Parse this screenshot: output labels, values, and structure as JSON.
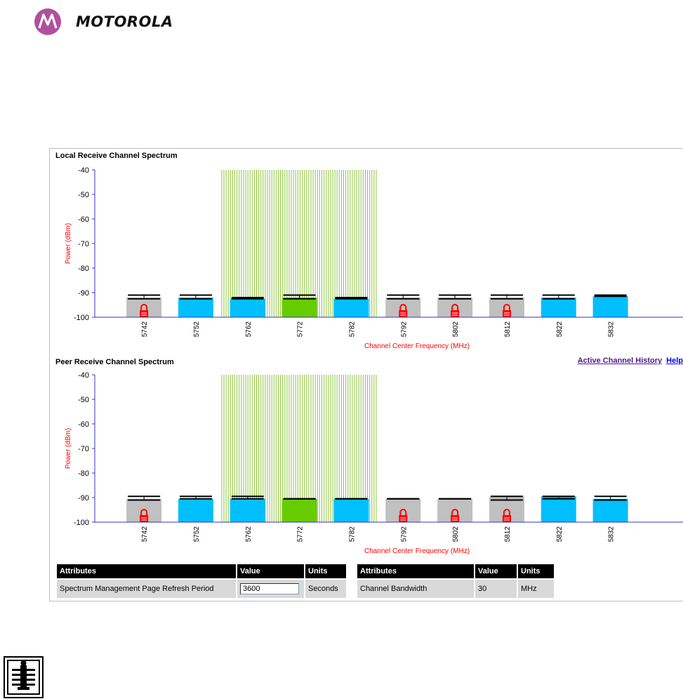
{
  "header": {
    "brand": "MOTOROLA"
  },
  "colors": {
    "available": "#00bfff",
    "active": "#66cc00",
    "barred": "#c0c0c0",
    "interference": "#8ec63f",
    "lock": "#ff0000",
    "axis_labels": "#ff0000"
  },
  "icons": [
    "motorola-logo-icon",
    "lock-icon",
    "info-icon"
  ],
  "local_chart": {
    "title": "Local Receive Channel Spectrum",
    "ylabel": "Power (dBm)",
    "xlabel": "Channel Center Frequency (MHz)",
    "yticks": [
      "-40",
      "-50",
      "-60",
      "-70",
      "-80",
      "-90",
      "-100"
    ]
  },
  "peer_chart": {
    "title": "Peer Receive Channel Spectrum",
    "ylabel": "Power (dBm)",
    "xlabel": "Channel Center Frequency (MHz)",
    "yticks": [
      "-40",
      "-50",
      "-60",
      "-70",
      "-80",
      "-90",
      "-100"
    ]
  },
  "links": {
    "history": "Active Channel History",
    "help": "Help"
  },
  "attributes_left": {
    "h_attr": "Attributes",
    "h_value": "Value",
    "h_units": "Units",
    "name": "Spectrum Management Page Refresh Period",
    "value": "3600",
    "units": "Seconds"
  },
  "attributes_right": {
    "h_attr": "Attributes",
    "h_value": "Value",
    "h_units": "Units",
    "name": "Channel Bandwidth",
    "value": "30",
    "units": "MHz"
  },
  "chart_data": [
    {
      "type": "bar",
      "title": "Local Receive Channel Spectrum",
      "xlabel": "Channel Center Frequency (MHz)",
      "ylabel": "Power (dBm)",
      "ylim": [
        -100,
        -40
      ],
      "interference_band": [
        5757,
        5787
      ],
      "categories": [
        "5742",
        "5752",
        "5762",
        "5772",
        "5782",
        "5792",
        "5802",
        "5812",
        "5822",
        "5832"
      ],
      "values": [
        -92,
        -92,
        -92.5,
        -92,
        -92.5,
        -92,
        -92,
        -92,
        -92,
        -91.5
      ],
      "peak": [
        -91,
        -91,
        -92,
        -91,
        -92,
        -91,
        -91,
        -91,
        -91,
        -91
      ],
      "mean": [
        -92.5,
        -92.5,
        -92.5,
        -92.5,
        -92.5,
        -92.5,
        -92.5,
        -92.5,
        -92.5,
        -91.5
      ],
      "status": [
        "barred",
        "available",
        "available",
        "active",
        "available",
        "barred",
        "barred",
        "barred",
        "available",
        "available"
      ]
    },
    {
      "type": "bar",
      "title": "Peer Receive Channel Spectrum",
      "xlabel": "Channel Center Frequency (MHz)",
      "ylabel": "Power (dBm)",
      "ylim": [
        -100,
        -40
      ],
      "interference_band": [
        5757,
        5787
      ],
      "categories": [
        "5742",
        "5752",
        "5762",
        "5772",
        "5782",
        "5792",
        "5802",
        "5812",
        "5822",
        "5832"
      ],
      "values": [
        -90.5,
        -90.5,
        -90.5,
        -90.5,
        -90.5,
        -90.5,
        -90.5,
        -89.5,
        -89.5,
        -90.5
      ],
      "peak": [
        -89.5,
        -89.5,
        -89.5,
        -90.5,
        -90.5,
        -90.5,
        -90.5,
        -89.5,
        -89.5,
        -89.5
      ],
      "mean": [
        -91,
        -90.5,
        -90.5,
        -90.5,
        -90.5,
        -90.5,
        -90.5,
        -91,
        -90.5,
        -91
      ],
      "status": [
        "barred",
        "available",
        "available",
        "active",
        "available",
        "barred",
        "barred",
        "barred",
        "available",
        "available"
      ]
    }
  ]
}
